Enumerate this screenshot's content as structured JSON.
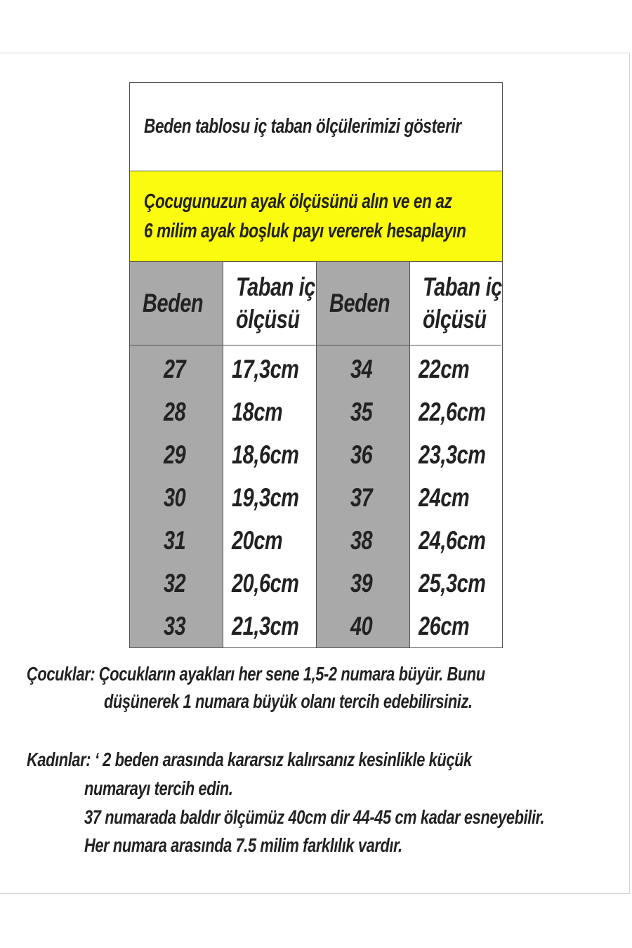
{
  "title": "Beden tablosu iç taban ölçülerimizi gösterir",
  "note_lines": [
    "Çocugunuzun ayak ölçüsünü alın ve en az",
    "6 milim ayak boşluk payı vererek hesaplayın"
  ],
  "colors": {
    "highlight": "#fbfb10",
    "size_column": "#a9a9a9"
  },
  "table": {
    "headers": {
      "size": "Beden",
      "insole_line1": "Taban iç",
      "insole_line2": "ölçüsü"
    },
    "left": {
      "sizes": [
        "27",
        "28",
        "29",
        "30",
        "31",
        "32",
        "33"
      ],
      "insoles": [
        "17,3cm",
        "18cm",
        "18,6cm",
        "19,3cm",
        "20cm",
        "20,6cm",
        "21,3cm"
      ]
    },
    "right": {
      "sizes": [
        "34",
        "35",
        "36",
        "37",
        "38",
        "39",
        "40"
      ],
      "insoles": [
        "22cm",
        "22,6cm",
        "23,3cm",
        "24cm",
        "24,6cm",
        "25,3cm",
        "26cm"
      ]
    }
  },
  "children": {
    "line1": "Çocuklar: Çocukların ayakları her sene 1,5-2 numara büyür. Bunu",
    "line2": "düşünerek 1 numara büyük olanı tercih edebilirsiniz."
  },
  "women": {
    "line1": "Kadınlar:  ‘ 2 beden arasında kararsız kalırsanız kesinlikle küçük",
    "line2": "numarayı tercih edin.",
    "line3": "37 numarada baldır ölçümüz 40cm dir 44-45 cm kadar esneyebilir.",
    "line4": "Her numara arasında 7.5 milim farklılık vardır."
  }
}
